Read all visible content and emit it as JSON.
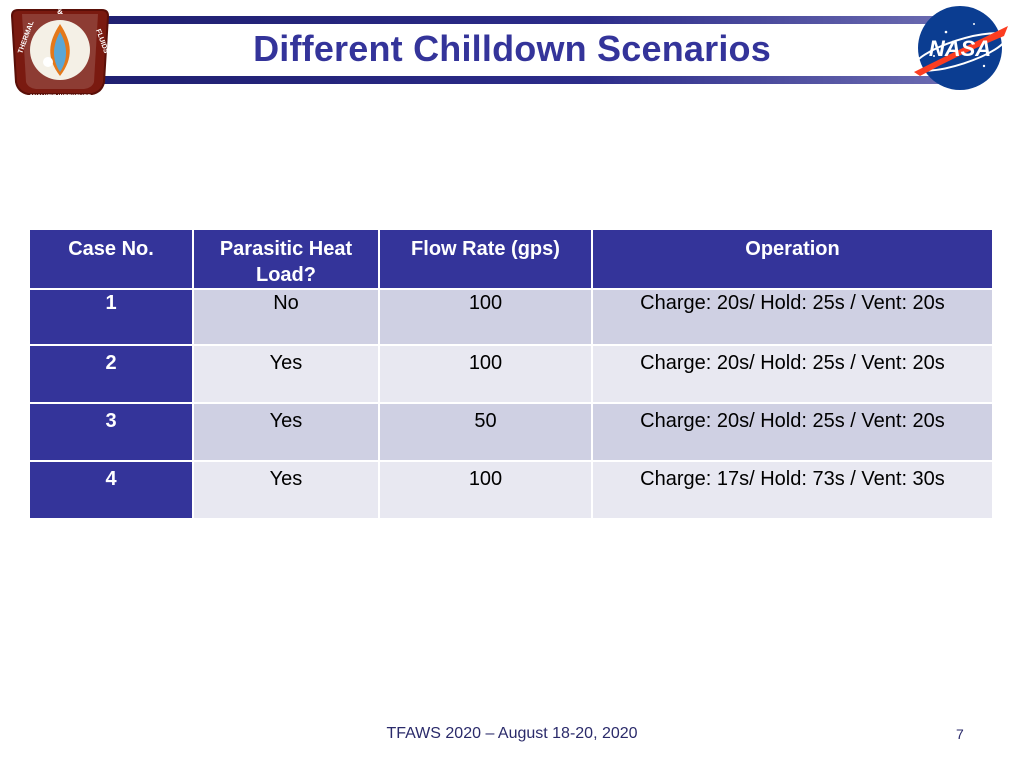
{
  "slide": {
    "title": "Different Chilldown Scenarios"
  },
  "logos": {
    "left": {
      "top_text": "&",
      "arc_left": "THERMAL",
      "arc_right": "FLUIDS",
      "banner": "ANALYSIS WORKSHOP"
    },
    "right": {
      "text": "NASA"
    }
  },
  "table": {
    "headers": [
      "Case No.",
      "Parasitic Heat Load?",
      "Flow Rate (gps)",
      "Operation"
    ],
    "rows": [
      {
        "case": "1",
        "heat": "No",
        "flow": "100",
        "operation": "Charge: 20s/  Hold: 25s / Vent: 20s"
      },
      {
        "case": "2",
        "heat": "Yes",
        "flow": "100",
        "operation": "Charge: 20s/  Hold: 25s / Vent: 20s"
      },
      {
        "case": "3",
        "heat": "Yes",
        "flow": "50",
        "operation": "Charge: 20s/  Hold: 25s / Vent: 20s"
      },
      {
        "case": "4",
        "heat": "Yes",
        "flow": "100",
        "operation": "Charge: 17s/  Hold: 73s / Vent: 30s"
      }
    ]
  },
  "footer": {
    "text": "TFAWS 2020 – August 18-20, 2020",
    "page_number": "7"
  }
}
